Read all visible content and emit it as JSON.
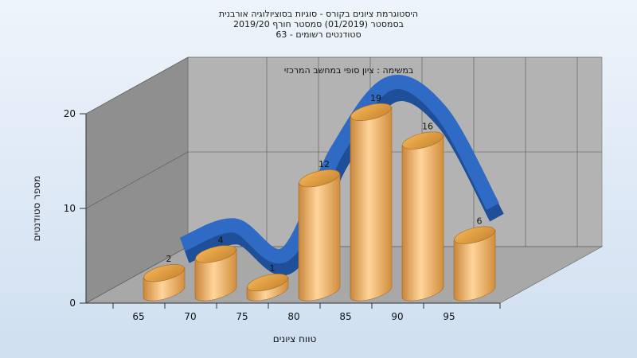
{
  "chart_data": {
    "type": "bar",
    "title_lines": [
      "היסטוגרמת ציונים בקורס - סוגיות בסוציולוגיה אורבנית",
      "בסמסטר  (01/2019)  סמסטר חורף 2019/20",
      "סטודנטים רשומים - 63"
    ],
    "annotation": "במשימה : ציון סופי במחשב המרכזי",
    "xlabel": "טווח ציונים",
    "ylabel": "מספר סטודנטים",
    "categories": [
      "65",
      "70",
      "75",
      "80",
      "85",
      "90",
      "95"
    ],
    "values": [
      2,
      4,
      1,
      12,
      19,
      16,
      6
    ],
    "data_labels": [
      "2",
      "4",
      "1",
      "12",
      "19",
      "16",
      "6"
    ],
    "y_ticks": [
      "0",
      "10",
      "20"
    ],
    "ylim": [
      0,
      20
    ],
    "grid": true,
    "style": "3d",
    "colors": {
      "bar": "#e8a84c",
      "curve": "#2f6bc4",
      "back_wall": "#b3b3b3",
      "side_wall": "#8f8f8f",
      "floor": "#a8a8a8"
    }
  }
}
